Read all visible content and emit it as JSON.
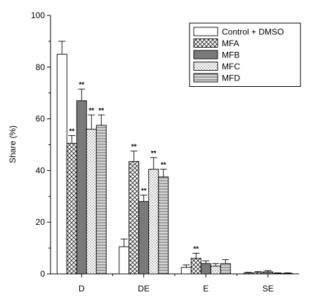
{
  "chart_data": {
    "type": "bar",
    "title": "",
    "xlabel": "",
    "ylabel": "Share (%)",
    "ylim": [
      0,
      100
    ],
    "yticks": [
      0,
      20,
      40,
      60,
      80,
      100
    ],
    "grid": false,
    "legend_position": "top-right",
    "categories": [
      "D",
      "DE",
      "E",
      "SE"
    ],
    "series": [
      {
        "name": "Control + DMSO",
        "pattern": "none",
        "values": [
          85,
          10.5,
          2.5,
          0.3
        ],
        "errors": [
          5,
          3,
          1,
          0.3
        ],
        "significance": [
          "",
          "",
          "",
          ""
        ]
      },
      {
        "name": "MFA",
        "pattern": "crosshatch",
        "values": [
          50.5,
          43.5,
          6,
          0.5
        ],
        "errors": [
          3,
          4,
          2,
          0.4
        ],
        "significance": [
          "**",
          "**",
          "**",
          ""
        ]
      },
      {
        "name": "MFB",
        "pattern": "dark-gray",
        "values": [
          67,
          28,
          4,
          0.8
        ],
        "errors": [
          4.5,
          2.5,
          1,
          0.5
        ],
        "significance": [
          "**",
          "**",
          "",
          ""
        ]
      },
      {
        "name": "MFC",
        "pattern": "dots",
        "values": [
          56,
          40.5,
          3,
          0.2
        ],
        "errors": [
          5.5,
          4.5,
          1,
          0.2
        ],
        "significance": [
          "**",
          "**",
          "",
          ""
        ]
      },
      {
        "name": "MFD",
        "pattern": "horizontal-lines",
        "values": [
          57.5,
          37.5,
          4,
          0.2
        ],
        "errors": [
          4,
          3,
          1.5,
          0.2
        ],
        "significance": [
          "**",
          "**",
          "",
          ""
        ]
      }
    ]
  }
}
